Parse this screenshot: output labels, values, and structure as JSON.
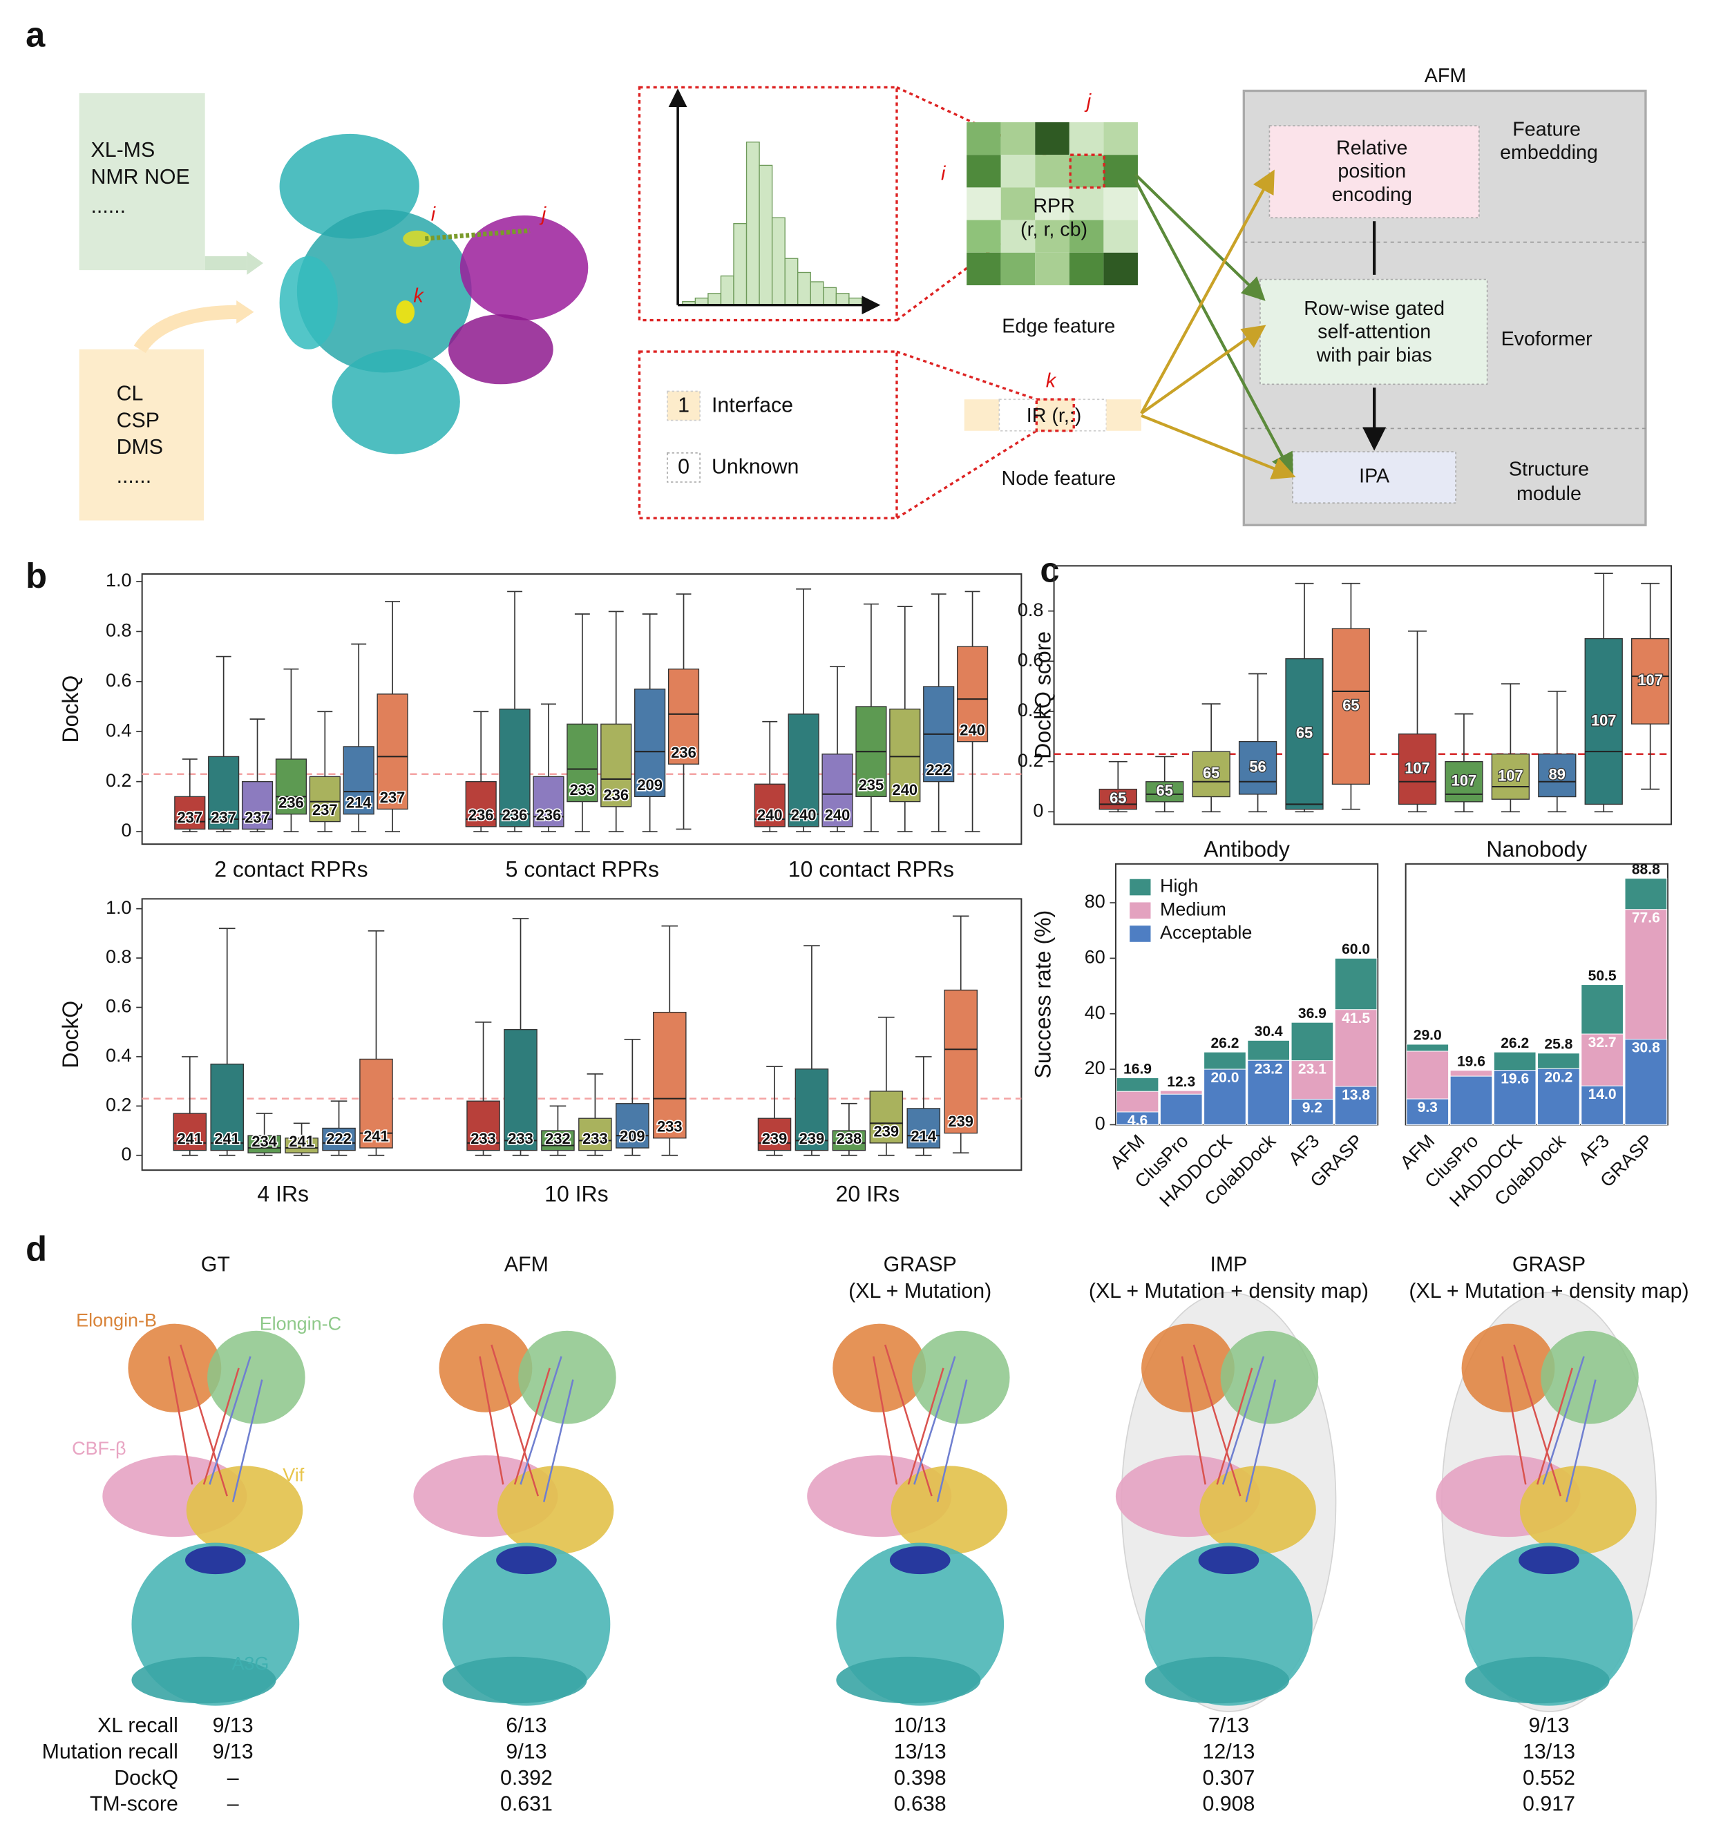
{
  "panel_labels": [
    "a",
    "b",
    "c",
    "d"
  ],
  "panel_a": {
    "inputs_top": [
      "XL-MS",
      "NMR NOE",
      "......"
    ],
    "inputs_bottom": [
      "CL",
      "CSP",
      "DMS",
      "......"
    ],
    "structure_labels": [
      "i",
      "j",
      "k"
    ],
    "edge": {
      "row": "i",
      "col": "j",
      "rpr": "RPR",
      "rpr_args": "(r, r, cb)",
      "caption": "Edge feature"
    },
    "node": {
      "residue": "k",
      "ir": "IR (r,:)",
      "caption": "Node feature",
      "legend": [
        {
          "code": 1,
          "label": "Interface"
        },
        {
          "code": 0,
          "label": "Unknown"
        }
      ]
    },
    "afm": {
      "title": "AFM",
      "modules": [
        {
          "box": [
            "Relative",
            "position",
            "encoding"
          ],
          "stage": [
            "Feature",
            "embedding"
          ]
        },
        {
          "box": [
            "Row-wise gated",
            "self-attention",
            "with pair bias"
          ],
          "stage": [
            "Evoformer"
          ]
        },
        {
          "box": [
            "IPA"
          ],
          "stage": [
            "Structure",
            "module"
          ]
        }
      ]
    }
  },
  "chart_data": [
    {
      "type": "box",
      "ylabel": "DockQ",
      "ylim": [
        -0.05,
        1.03
      ],
      "yticks": [
        0,
        0.2,
        0.4,
        0.6,
        0.8,
        {
          "value": 1.0,
          "label": "1.0"
        }
      ],
      "threshold": 0.23,
      "threshold_color": "#f4a3a3",
      "groups": [
        {
          "label": "2 contact RPRs",
          "boxes": [
            {
              "color": "#b8403a",
              "stats": [
                0,
                0.01,
                0.04,
                0.14,
                0.29
              ],
              "count": 237
            },
            {
              "color": "#2f7d7b",
              "stats": [
                0,
                0.01,
                0.05,
                0.3,
                0.7
              ],
              "count": 237
            },
            {
              "color": "#8c7bbf",
              "stats": [
                0,
                0.01,
                0.05,
                0.2,
                0.45
              ],
              "count": 237
            },
            {
              "color": "#5d9a52",
              "stats": [
                0,
                0.07,
                0.14,
                0.29,
                0.65
              ],
              "count": 236
            },
            {
              "color": "#a9b25d",
              "stats": [
                0,
                0.04,
                0.12,
                0.22,
                0.48
              ],
              "count": 237
            },
            {
              "color": "#4a7aa8",
              "stats": [
                0,
                0.07,
                0.16,
                0.34,
                0.75
              ],
              "count": 214
            },
            {
              "color": "#e0805a",
              "stats": [
                0,
                0.09,
                0.3,
                0.55,
                0.92
              ],
              "count": 237
            }
          ]
        },
        {
          "label": "5 contact RPRs",
          "boxes": [
            {
              "color": "#b8403a",
              "stats": [
                0,
                0.02,
                0.05,
                0.2,
                0.48
              ],
              "count": 236
            },
            {
              "color": "#2f7d7b",
              "stats": [
                0,
                0.02,
                0.07,
                0.49,
                0.96
              ],
              "count": 236
            },
            {
              "color": "#8c7bbf",
              "stats": [
                0,
                0.02,
                0.06,
                0.22,
                0.51
              ],
              "count": 236
            },
            {
              "color": "#5d9a52",
              "stats": [
                0,
                0.12,
                0.25,
                0.43,
                0.87
              ],
              "count": 233
            },
            {
              "color": "#a9b25d",
              "stats": [
                0,
                0.1,
                0.21,
                0.43,
                0.88
              ],
              "count": 236
            },
            {
              "color": "#4a7aa8",
              "stats": [
                0,
                0.14,
                0.32,
                0.57,
                0.87
              ],
              "count": 209
            },
            {
              "color": "#e0805a",
              "stats": [
                0.01,
                0.27,
                0.47,
                0.65,
                0.95
              ],
              "count": 236
            }
          ]
        },
        {
          "label": "10 contact RPRs",
          "boxes": [
            {
              "color": "#b8403a",
              "stats": [
                0,
                0.02,
                0.05,
                0.19,
                0.44
              ],
              "count": 240
            },
            {
              "color": "#2f7d7b",
              "stats": [
                0,
                0.02,
                0.07,
                0.47,
                0.97
              ],
              "count": 240
            },
            {
              "color": "#8c7bbf",
              "stats": [
                0,
                0.02,
                0.15,
                0.31,
                0.66
              ],
              "count": 240
            },
            {
              "color": "#5d9a52",
              "stats": [
                0,
                0.14,
                0.32,
                0.5,
                0.91
              ],
              "count": 235
            },
            {
              "color": "#a9b25d",
              "stats": [
                0,
                0.12,
                0.3,
                0.49,
                0.9
              ],
              "count": 240
            },
            {
              "color": "#4a7aa8",
              "stats": [
                0,
                0.2,
                0.39,
                0.58,
                0.95
              ],
              "count": 222
            },
            {
              "color": "#e0805a",
              "stats": [
                0,
                0.36,
                0.53,
                0.74,
                0.96
              ],
              "count": 240
            }
          ]
        }
      ]
    },
    {
      "type": "box",
      "ylabel": "DockQ",
      "ylim": [
        -0.06,
        1.04
      ],
      "yticks": [
        0,
        0.2,
        0.4,
        0.6,
        0.8,
        {
          "value": 1.0,
          "label": "1.0"
        }
      ],
      "threshold": 0.23,
      "threshold_color": "#f4a3a3",
      "groups": [
        {
          "label": "4 IRs",
          "boxes": [
            {
              "color": "#b8403a",
              "stats": [
                0,
                0.02,
                0.05,
                0.17,
                0.4
              ],
              "count": 241
            },
            {
              "color": "#2f7d7b",
              "stats": [
                0,
                0.02,
                0.05,
                0.37,
                0.92
              ],
              "count": 241
            },
            {
              "color": "#5d9a52",
              "stats": [
                0,
                0.01,
                0.03,
                0.08,
                0.17
              ],
              "count": 234
            },
            {
              "color": "#a9b25d",
              "stats": [
                0,
                0.01,
                0.03,
                0.07,
                0.13
              ],
              "count": 241
            },
            {
              "color": "#4a7aa8",
              "stats": [
                0,
                0.02,
                0.05,
                0.11,
                0.22
              ],
              "count": 222
            },
            {
              "color": "#e0805a",
              "stats": [
                0,
                0.03,
                0.09,
                0.39,
                0.91
              ],
              "count": 241
            }
          ]
        },
        {
          "label": "10 IRs",
          "boxes": [
            {
              "color": "#b8403a",
              "stats": [
                0,
                0.02,
                0.05,
                0.22,
                0.54
              ],
              "count": 233
            },
            {
              "color": "#2f7d7b",
              "stats": [
                0,
                0.02,
                0.06,
                0.51,
                0.96
              ],
              "count": 233
            },
            {
              "color": "#5d9a52",
              "stats": [
                0,
                0.02,
                0.04,
                0.1,
                0.2
              ],
              "count": 232
            },
            {
              "color": "#a9b25d",
              "stats": [
                0,
                0.02,
                0.06,
                0.15,
                0.33
              ],
              "count": 233
            },
            {
              "color": "#4a7aa8",
              "stats": [
                0,
                0.03,
                0.08,
                0.21,
                0.47
              ],
              "count": 209
            },
            {
              "color": "#e0805a",
              "stats": [
                0,
                0.07,
                0.23,
                0.58,
                0.93
              ],
              "count": 233
            }
          ]
        },
        {
          "label": "20 IRs",
          "boxes": [
            {
              "color": "#b8403a",
              "stats": [
                0,
                0.02,
                0.05,
                0.15,
                0.36
              ],
              "count": 239
            },
            {
              "color": "#2f7d7b",
              "stats": [
                0,
                0.02,
                0.06,
                0.35,
                0.85
              ],
              "count": 239
            },
            {
              "color": "#5d9a52",
              "stats": [
                0,
                0.02,
                0.05,
                0.1,
                0.21
              ],
              "count": 238
            },
            {
              "color": "#a9b25d",
              "stats": [
                0,
                0.05,
                0.13,
                0.26,
                0.56
              ],
              "count": 239
            },
            {
              "color": "#4a7aa8",
              "stats": [
                0,
                0.03,
                0.08,
                0.19,
                0.4
              ],
              "count": 214
            },
            {
              "color": "#e0805a",
              "stats": [
                0.01,
                0.09,
                0.43,
                0.67,
                0.97
              ],
              "count": 239
            }
          ]
        }
      ]
    },
    {
      "type": "box",
      "ylabel": "DockQ score",
      "ylim": [
        -0.05,
        0.98
      ],
      "yticks": [
        0,
        0.2,
        0.4,
        0.6,
        0.8
      ],
      "threshold": 0.23,
      "threshold_color": "#d62728",
      "groups": [
        {
          "boxes": [
            {
              "color": "#b8403a",
              "stats": [
                0,
                0.01,
                0.03,
                0.09,
                0.2
              ],
              "count": 65
            },
            {
              "color": "#5d9a52",
              "stats": [
                0,
                0.04,
                0.07,
                0.12,
                0.22
              ],
              "count": 65
            },
            {
              "color": "#a9b25d",
              "stats": [
                0,
                0.06,
                0.12,
                0.24,
                0.43
              ],
              "count": 65
            },
            {
              "color": "#4a7aa8",
              "stats": [
                0,
                0.07,
                0.12,
                0.28,
                0.55
              ],
              "count": 56
            },
            {
              "color": "#2f7d7b",
              "stats": [
                0,
                0.01,
                0.03,
                0.61,
                0.91
              ],
              "count": 65
            },
            {
              "color": "#e0805a",
              "stats": [
                0.01,
                0.11,
                0.48,
                0.73,
                0.91
              ],
              "count": 65
            }
          ]
        },
        {
          "boxes": [
            {
              "color": "#b8403a",
              "stats": [
                0,
                0.03,
                0.12,
                0.31,
                0.72
              ],
              "count": 107
            },
            {
              "color": "#5d9a52",
              "stats": [
                0,
                0.04,
                0.07,
                0.2,
                0.39
              ],
              "count": 107
            },
            {
              "color": "#a9b25d",
              "stats": [
                0,
                0.05,
                0.1,
                0.23,
                0.51
              ],
              "count": 107
            },
            {
              "color": "#4a7aa8",
              "stats": [
                0,
                0.06,
                0.12,
                0.23,
                0.48
              ],
              "count": 89
            },
            {
              "color": "#2f7d7b",
              "stats": [
                0,
                0.03,
                0.24,
                0.69,
                0.95
              ],
              "count": 107
            },
            {
              "color": "#e0805a",
              "stats": [
                0.09,
                0.35,
                0.54,
                0.69,
                0.91
              ],
              "count": 107
            }
          ]
        }
      ]
    },
    {
      "type": "bar",
      "title": "Antibody",
      "ylabel": "Success rate (%)",
      "categories": [
        "AFM",
        "ClusPro",
        "HADDOCK",
        "ColabDock",
        "AF3",
        "GRASP"
      ],
      "ylim": [
        0,
        94
      ],
      "yticks": [
        0,
        20,
        40,
        60,
        80
      ],
      "legend": "upper left",
      "series": [
        {
          "name": "High",
          "color": "#3b8f84",
          "values": [
            16.9,
            12.3,
            26.2,
            30.4,
            36.9,
            60.0
          ],
          "value_labels": [
            "16.9",
            "12.3",
            "26.2",
            "30.4",
            "36.9",
            "60.0"
          ]
        },
        {
          "name": "Medium",
          "color": "#e3a2bf",
          "values": [
            12.0,
            12.3,
            20.0,
            23.2,
            23.1,
            41.5
          ],
          "value_labels": [
            null,
            null,
            null,
            null,
            "23.1",
            "41.5"
          ]
        },
        {
          "name": "Acceptable",
          "color": "#4e7ec3",
          "values": [
            4.6,
            11.0,
            20.0,
            23.2,
            9.2,
            13.8
          ],
          "value_labels": [
            "4.6",
            null,
            "20.0",
            "23.2",
            "9.2",
            "13.8"
          ]
        }
      ]
    },
    {
      "type": "bar",
      "title": "Nanobody",
      "categories": [
        "AFM",
        "ClusPro",
        "HADDOCK",
        "ColabDock",
        "AF3",
        "GRASP"
      ],
      "ylim": [
        0,
        94
      ],
      "series": [
        {
          "name": "High",
          "color": "#3b8f84",
          "values": [
            29.0,
            19.6,
            26.2,
            25.8,
            50.5,
            88.8
          ],
          "value_labels": [
            "29.0",
            "19.6",
            "26.2",
            "25.8",
            "50.5",
            "88.8"
          ]
        },
        {
          "name": "Medium",
          "color": "#e3a2bf",
          "values": [
            26.5,
            19.6,
            19.6,
            20.2,
            32.7,
            77.6
          ],
          "value_labels": [
            null,
            null,
            null,
            null,
            "32.7",
            "77.6"
          ]
        },
        {
          "name": "Acceptable",
          "color": "#4e7ec3",
          "values": [
            9.3,
            17.5,
            19.6,
            20.2,
            14.0,
            30.8
          ],
          "value_labels": [
            "9.3",
            null,
            "19.6",
            "20.2",
            "14.0",
            "30.8"
          ]
        }
      ]
    }
  ],
  "panel_d": {
    "columns": [
      {
        "title": [
          "GT"
        ]
      },
      {
        "title": [
          "AFM"
        ]
      },
      {
        "title": [
          "GRASP",
          "(XL + Mutation)"
        ]
      },
      {
        "title": [
          "IMP",
          "(XL + Mutation + density map)"
        ]
      },
      {
        "title": [
          "GRASP",
          "(XL + Mutation + density map)"
        ]
      }
    ],
    "chain_labels": [
      "Elongin-B",
      "Elongin-C",
      "CBF-β",
      "Vif",
      "A3G"
    ],
    "table": {
      "row_labels": [
        "XL recall",
        "Mutation recall",
        "DockQ",
        "TM-score"
      ],
      "rows": [
        [
          "9/13",
          "6/13",
          "10/13",
          "7/13",
          "9/13"
        ],
        [
          "9/13",
          "9/13",
          "13/13",
          "12/13",
          "13/13"
        ],
        [
          "–",
          "0.392",
          "0.398",
          "0.307",
          "0.552"
        ],
        [
          "–",
          "0.631",
          "0.638",
          "0.908",
          "0.917"
        ]
      ]
    }
  }
}
